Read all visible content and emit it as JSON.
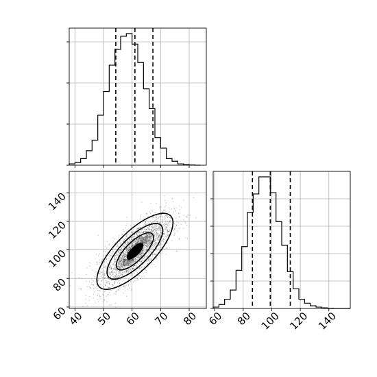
{
  "chart_data": [
    {
      "type": "histogram",
      "panel": "x-marginal",
      "x_ticks": [
        "40",
        "50",
        "60",
        "70",
        "80"
      ],
      "xlim": [
        38,
        86
      ],
      "y_grid_fractions": [
        0.3,
        0.6,
        0.9
      ],
      "bins": {
        "edges": [
          38,
          40,
          42,
          44,
          46,
          48,
          50,
          52,
          54,
          56,
          58,
          60,
          62,
          64,
          66,
          68,
          70,
          72,
          74,
          76,
          78,
          80,
          82,
          84
        ],
        "relative_heights": [
          0.01,
          0.02,
          0.05,
          0.11,
          0.19,
          0.38,
          0.56,
          0.76,
          0.88,
          0.98,
          1.0,
          0.92,
          0.78,
          0.58,
          0.43,
          0.21,
          0.13,
          0.05,
          0.03,
          0.01,
          0.005,
          0.002,
          0.0
        ]
      },
      "quantile_lines": [
        54.3,
        61.0,
        67.3
      ],
      "grid": true
    },
    {
      "type": "scatter",
      "panel": "joint",
      "x_ticks": [
        "40",
        "50",
        "60",
        "70",
        "80"
      ],
      "y_ticks": [
        "60",
        "80",
        "100",
        "120",
        "140"
      ],
      "xlim": [
        38,
        86
      ],
      "ylim": [
        59,
        155
      ],
      "mean": [
        61,
        99
      ],
      "std": [
        6.5,
        13
      ],
      "correlation": 0.75,
      "contour_levels": [
        "outer",
        "middle",
        "inner",
        "core"
      ],
      "grid": true
    },
    {
      "type": "histogram",
      "panel": "y-marginal",
      "x_ticks": [
        "60",
        "80",
        "100",
        "120",
        "140"
      ],
      "xlim": [
        59,
        155
      ],
      "y_grid_fractions": [
        0.2,
        0.4,
        0.6,
        0.8
      ],
      "bins": {
        "edges": [
          59,
          63,
          67,
          71,
          75,
          79,
          83,
          87,
          91,
          95,
          99,
          103,
          107,
          111,
          115,
          119,
          123,
          127,
          131,
          135,
          139,
          143,
          147,
          151,
          155
        ],
        "relative_heights": [
          0.01,
          0.03,
          0.07,
          0.14,
          0.29,
          0.47,
          0.73,
          0.87,
          1.0,
          1.0,
          0.88,
          0.66,
          0.48,
          0.28,
          0.15,
          0.07,
          0.04,
          0.02,
          0.01,
          0.005,
          0.002,
          0.0,
          0.0,
          0.0
        ]
      },
      "quantile_lines": [
        86.5,
        99.0,
        113.0
      ],
      "grid": true
    }
  ]
}
